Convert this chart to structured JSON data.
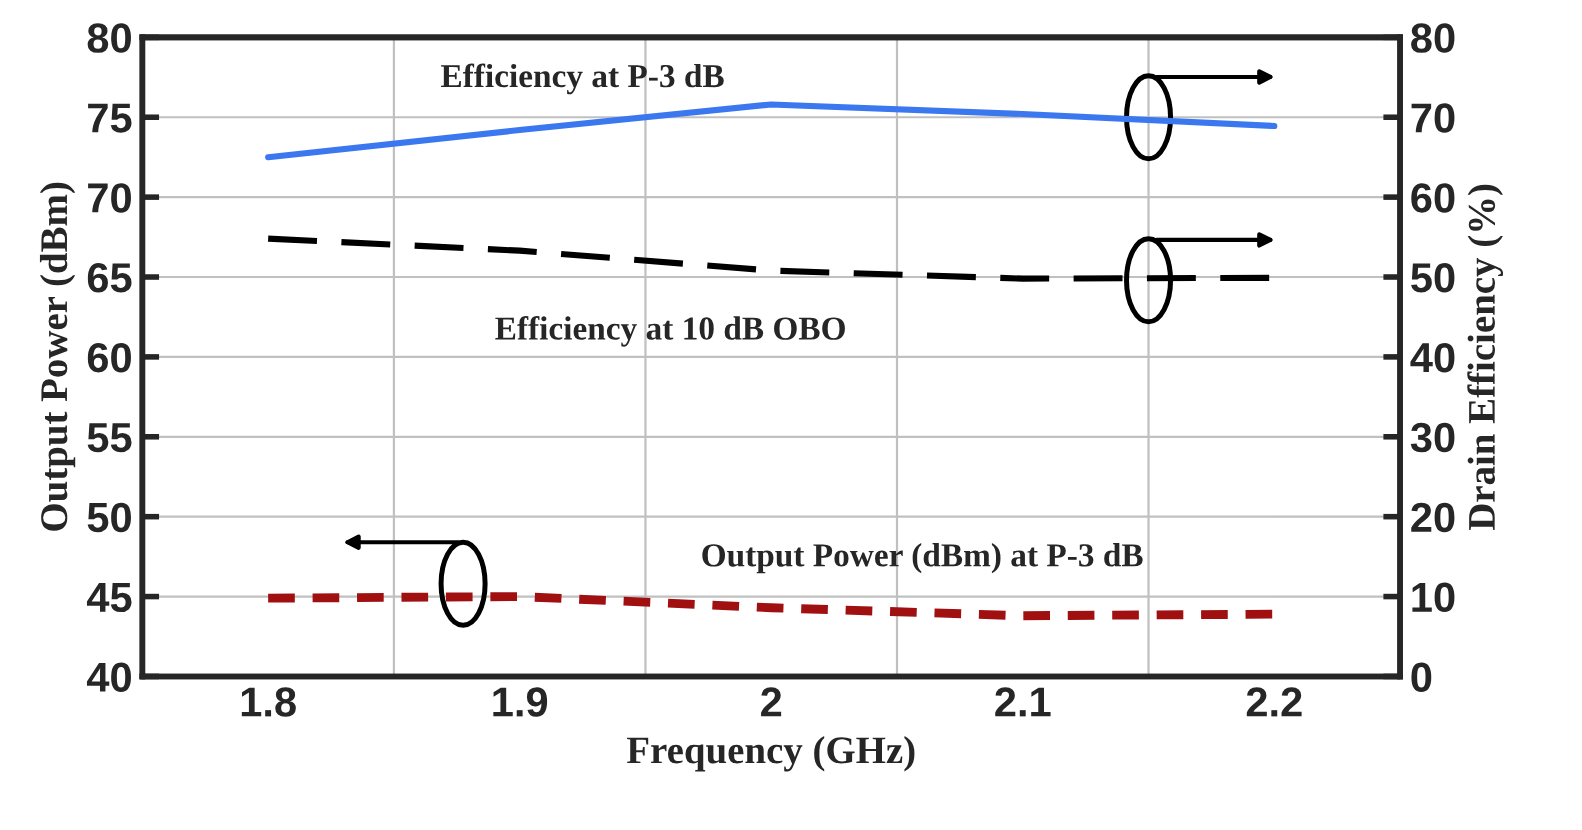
{
  "chart_data": {
    "type": "line",
    "categories": [
      "1.8",
      "1.9",
      "2",
      "2.1",
      "2.2"
    ],
    "xlabel": "Frequency (GHz)",
    "ylabel": "Output Power (dBm)",
    "y2label": "Drain Efficiency (%)",
    "ylim": [
      40,
      80
    ],
    "yticks": [
      40,
      45,
      50,
      55,
      60,
      65,
      70,
      75,
      80
    ],
    "y2lim": [
      0,
      80
    ],
    "y2ticks": [
      0,
      10,
      20,
      30,
      40,
      50,
      60,
      70,
      80
    ],
    "grid": true,
    "series": [
      {
        "color": "#3b78f0",
        "line_style": "solid",
        "axis": "y2",
        "values": [
          65,
          68.4,
          71.6,
          70.4,
          68.9
        ]
      },
      {
        "color": "#000000",
        "line_style": "dashed",
        "axis": "y2",
        "values": [
          54.8,
          53.3,
          50.8,
          49.8,
          49.9
        ]
      },
      {
        "color": "#a01010",
        "line_style": "dotted",
        "axis": "y",
        "values": [
          44.9,
          45.0,
          44.3,
          43.8,
          43.9
        ]
      }
    ],
    "annotations": [
      "Efficiency at P-3 dB",
      "Efficiency at 10 dB OBO",
      "Output Power (dBm) at P-3 dB"
    ]
  }
}
